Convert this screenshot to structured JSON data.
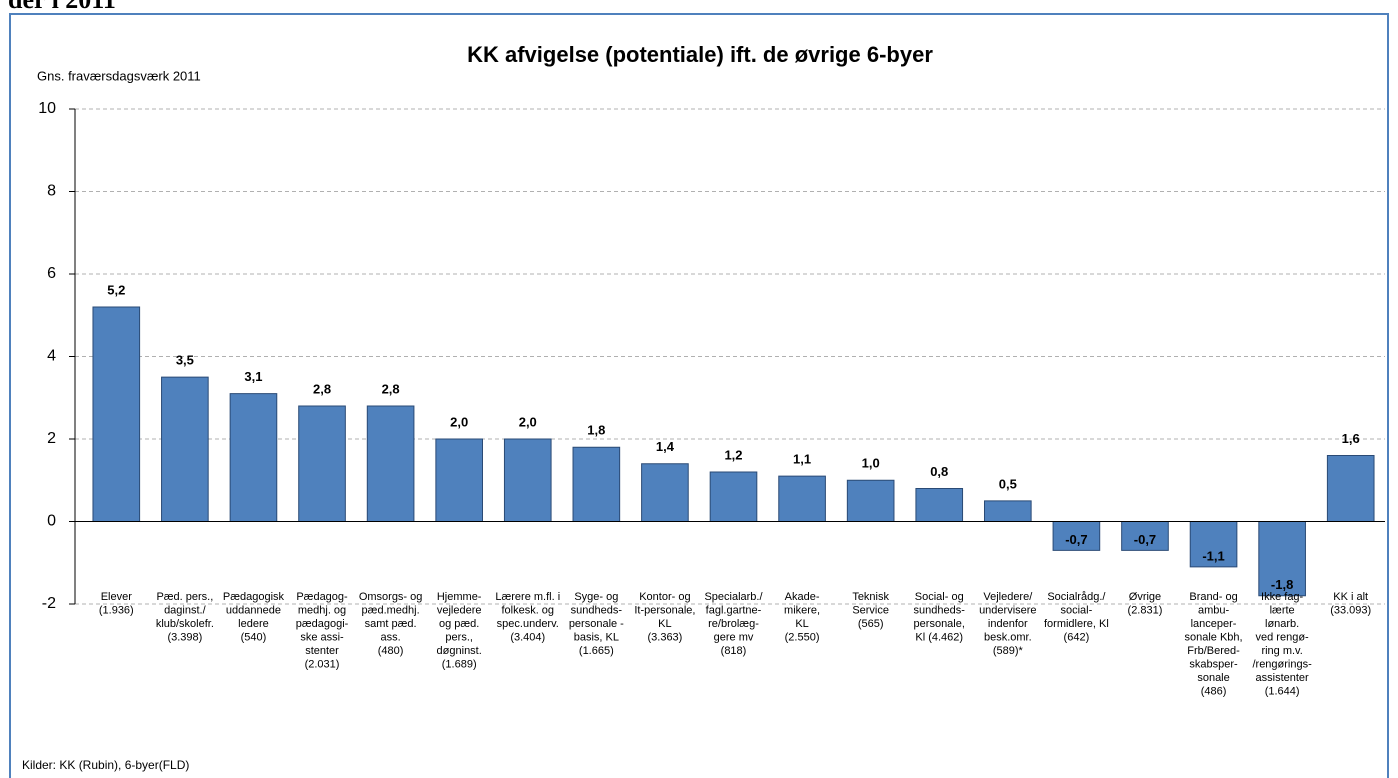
{
  "page_heading": "der i 2011",
  "chart_data": {
    "type": "bar",
    "title": "KK afvigelse (potentiale) ift. de øvrige 6-byer",
    "y_label": "Gns. fraværsdagsværk 2011",
    "source": "Kilder: KK (Rubin), 6-byer(FLD)",
    "categories": [
      "Elever\n(1.936)",
      "Pæd. pers.,\ndaginst./\nklub/skolefr.\n(3.398)",
      "Pædagogisk\nuddannede\nledere\n(540)",
      "Pædagog-\nmedhj. og\npædagogi-\nske assi-\nstenter\n(2.031)",
      "Omsorgs- og\npæd.medhj.\nsamt pæd.\nass.\n(480)",
      "Hjemme-\nvejledere\nog pæd.\npers.,\ndøgninst.\n(1.689)",
      "Lærere m.fl. i\nfolkesk. og\nspec.underv.\n(3.404)",
      "Syge- og\nsundheds-\npersonale -\nbasis, KL\n(1.665)",
      "Kontor- og\nIt-personale,\nKL\n(3.363)",
      "Specialarb./\nfagl.gartne-\nre/brolæg-\ngere mv\n(818)",
      "Akade-\nmikere,\nKL\n(2.550)",
      "Teknisk\nService\n(565)",
      "Social- og\nsundheds-\npersonale,\nKl (4.462)",
      "Vejledere/\nundervisere\nindenfor\nbesk.omr.\n(589)*",
      "Socialrådg./\nsocial-\nformidlere, Kl\n(642)",
      "Øvrige\n(2.831)",
      "Brand- og\nambu-\nlanceper-\nsonale Kbh,\nFrb/Bered-\nskabsper-\nsonale\n(486)",
      "Ikke fag-\nlærte\nlønarb.\nved rengø-\nring m.v.\n/rengørings-\nassistenter\n(1.644)",
      "KK i alt\n(33.093)"
    ],
    "values": [
      5.2,
      3.5,
      3.1,
      2.8,
      2.8,
      2.0,
      2.0,
      1.8,
      1.4,
      1.2,
      1.1,
      1.0,
      0.8,
      0.5,
      -0.7,
      -0.7,
      -1.1,
      -1.8,
      1.6
    ],
    "value_labels": [
      "5,2",
      "3,5",
      "3,1",
      "2,8",
      "2,8",
      "2,0",
      "2,0",
      "1,8",
      "1,4",
      "1,2",
      "1,1",
      "1,0",
      "0,8",
      "0,5",
      "-0,7",
      "-0,7",
      "-1,1",
      "-1,8",
      "1,6"
    ],
    "color": "#4f81bd",
    "ylim": [
      -2,
      10
    ],
    "yticks": [
      -2,
      0,
      2,
      4,
      6,
      8,
      10
    ],
    "grid": true
  }
}
